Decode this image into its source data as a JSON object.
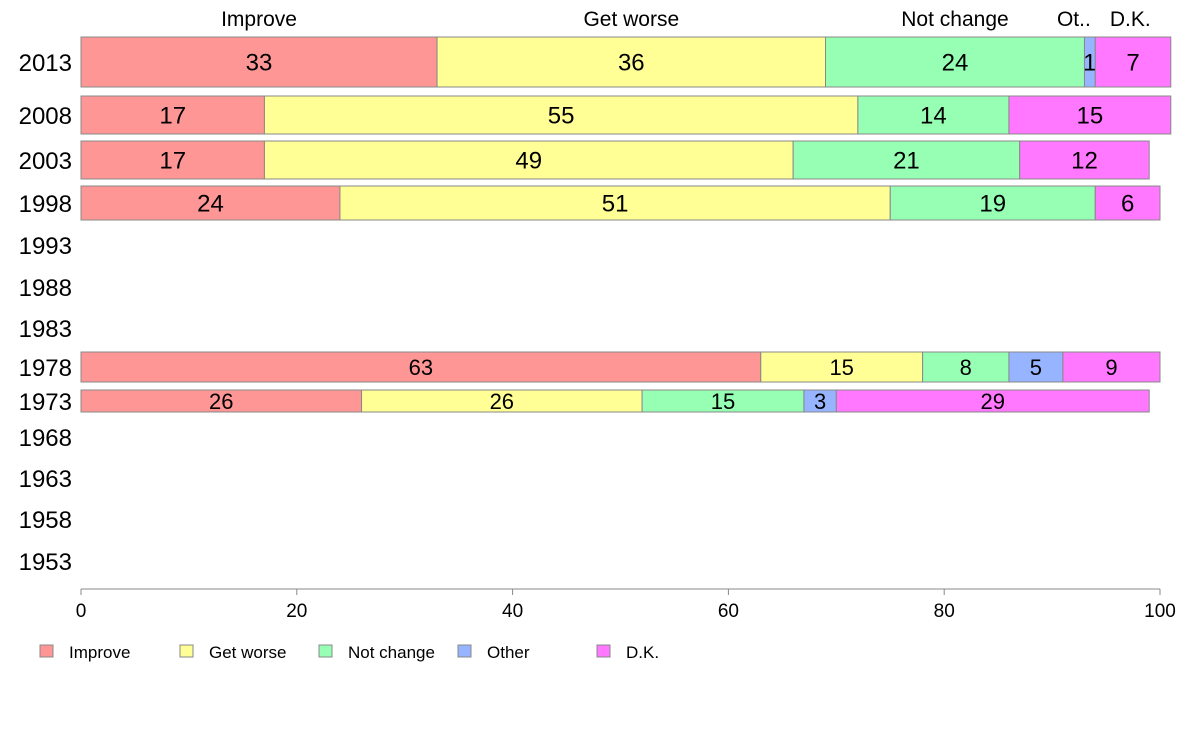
{
  "chart_data": {
    "type": "bar",
    "orientation": "horizontal",
    "stacked": true,
    "categories": [
      "2013",
      "2008",
      "2003",
      "1998",
      "1993",
      "1988",
      "1983",
      "1978",
      "1973",
      "1968",
      "1963",
      "1958",
      "1953"
    ],
    "series": [
      {
        "name": "Improve",
        "color": "#FF9696",
        "values": [
          33,
          17,
          17,
          24,
          null,
          null,
          null,
          63,
          26,
          null,
          null,
          null,
          null
        ]
      },
      {
        "name": "Get worse",
        "color": "#FFFF96",
        "values": [
          36,
          55,
          49,
          51,
          null,
          null,
          null,
          15,
          26,
          null,
          null,
          null,
          null
        ]
      },
      {
        "name": "Not change",
        "color": "#96FFB4",
        "values": [
          24,
          14,
          21,
          19,
          null,
          null,
          null,
          8,
          15,
          null,
          null,
          null,
          null
        ]
      },
      {
        "name": "Other",
        "color": "#96B4FF",
        "values": [
          1,
          0,
          0,
          0,
          null,
          null,
          null,
          5,
          3,
          null,
          null,
          null,
          null
        ]
      },
      {
        "name": "D.K.",
        "color": "#FF78FF",
        "values": [
          7,
          15,
          12,
          6,
          null,
          null,
          null,
          9,
          29,
          null,
          null,
          null,
          null
        ]
      }
    ],
    "top_labels": [
      "Improve",
      "Get worse",
      "Not change",
      "Ot..",
      "D.K."
    ],
    "xlim": [
      0,
      100
    ],
    "xticks": [
      0,
      20,
      40,
      60,
      80,
      100
    ],
    "legend_position": "bottom-left",
    "grid": false,
    "title": "",
    "xlabel": "",
    "ylabel": ""
  }
}
